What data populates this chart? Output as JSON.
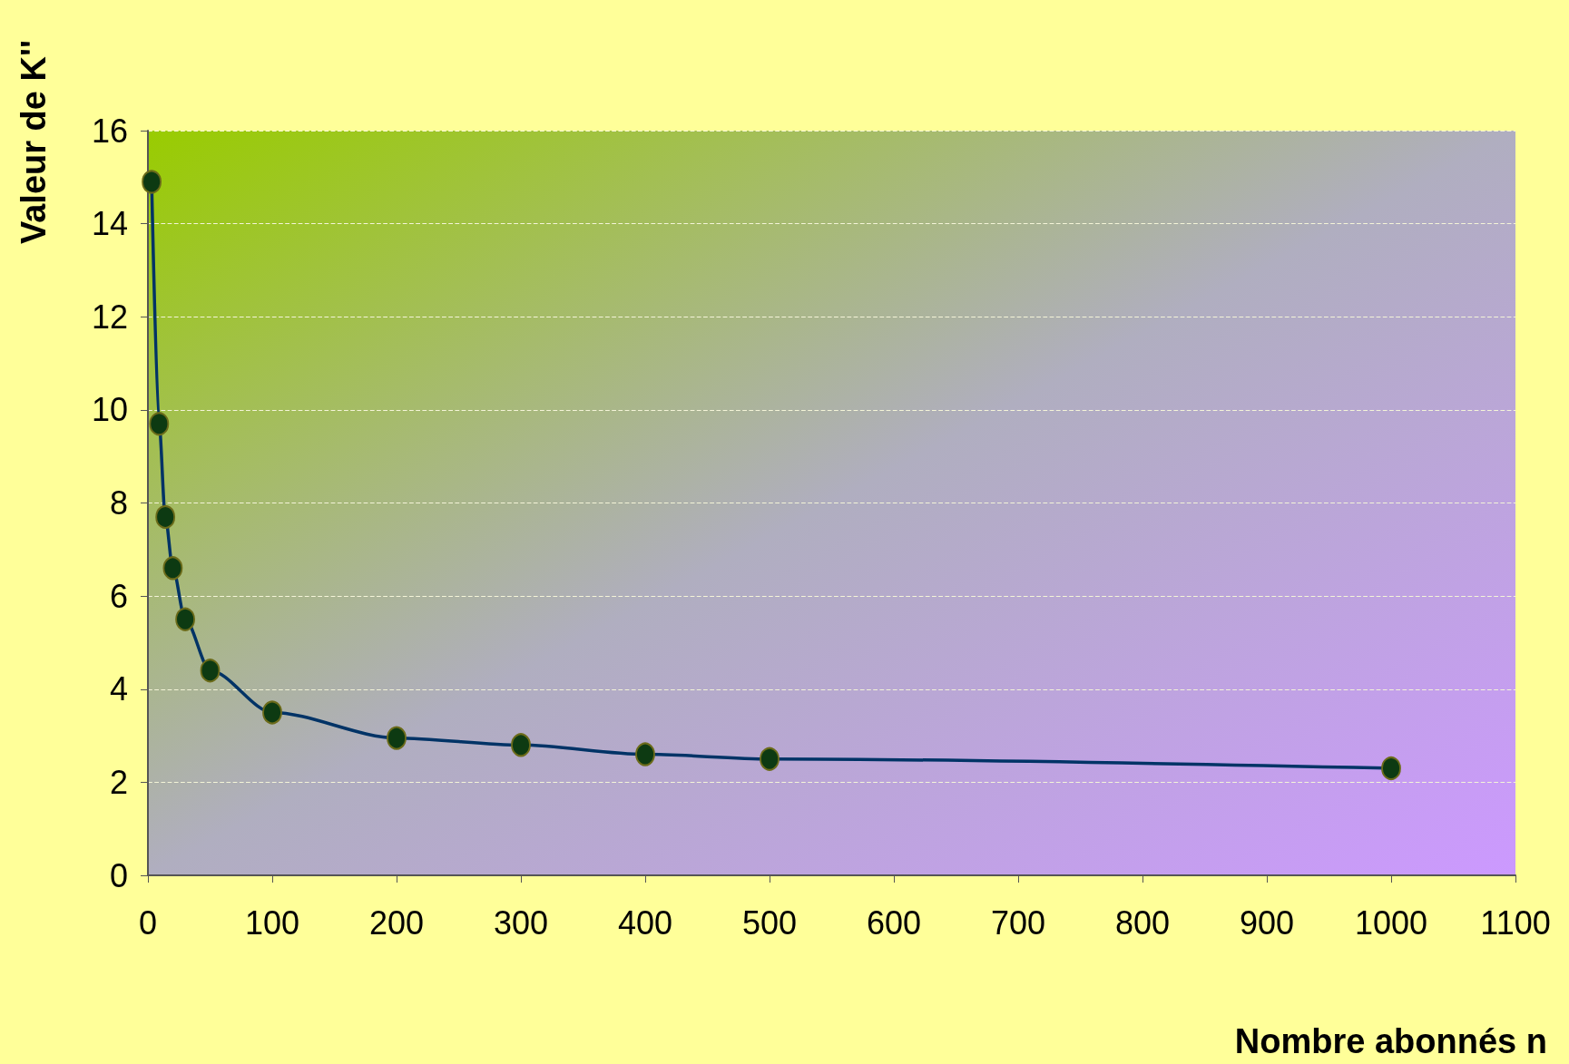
{
  "chart_data": {
    "type": "line",
    "xlabel": "Nombre abonnés n",
    "ylabel": "Valeur de K''",
    "x": [
      3,
      9,
      14,
      20,
      30,
      50,
      100,
      200,
      300,
      400,
      500,
      1000
    ],
    "series": [
      {
        "color": "#003366",
        "values": [
          14.9,
          9.7,
          7.7,
          6.6,
          5.5,
          4.4,
          3.5,
          2.95,
          2.8,
          2.6,
          2.5,
          2.3
        ]
      }
    ],
    "xlim": [
      0,
      1100
    ],
    "xticks": [
      0,
      100,
      200,
      300,
      400,
      500,
      600,
      700,
      800,
      900,
      1000,
      1100
    ],
    "ylim": [
      0,
      16
    ],
    "yticks": [
      0,
      2,
      4,
      6,
      8,
      10,
      12,
      14,
      16
    ],
    "grid": "y",
    "marker": "circle",
    "line_style": "solid"
  }
}
